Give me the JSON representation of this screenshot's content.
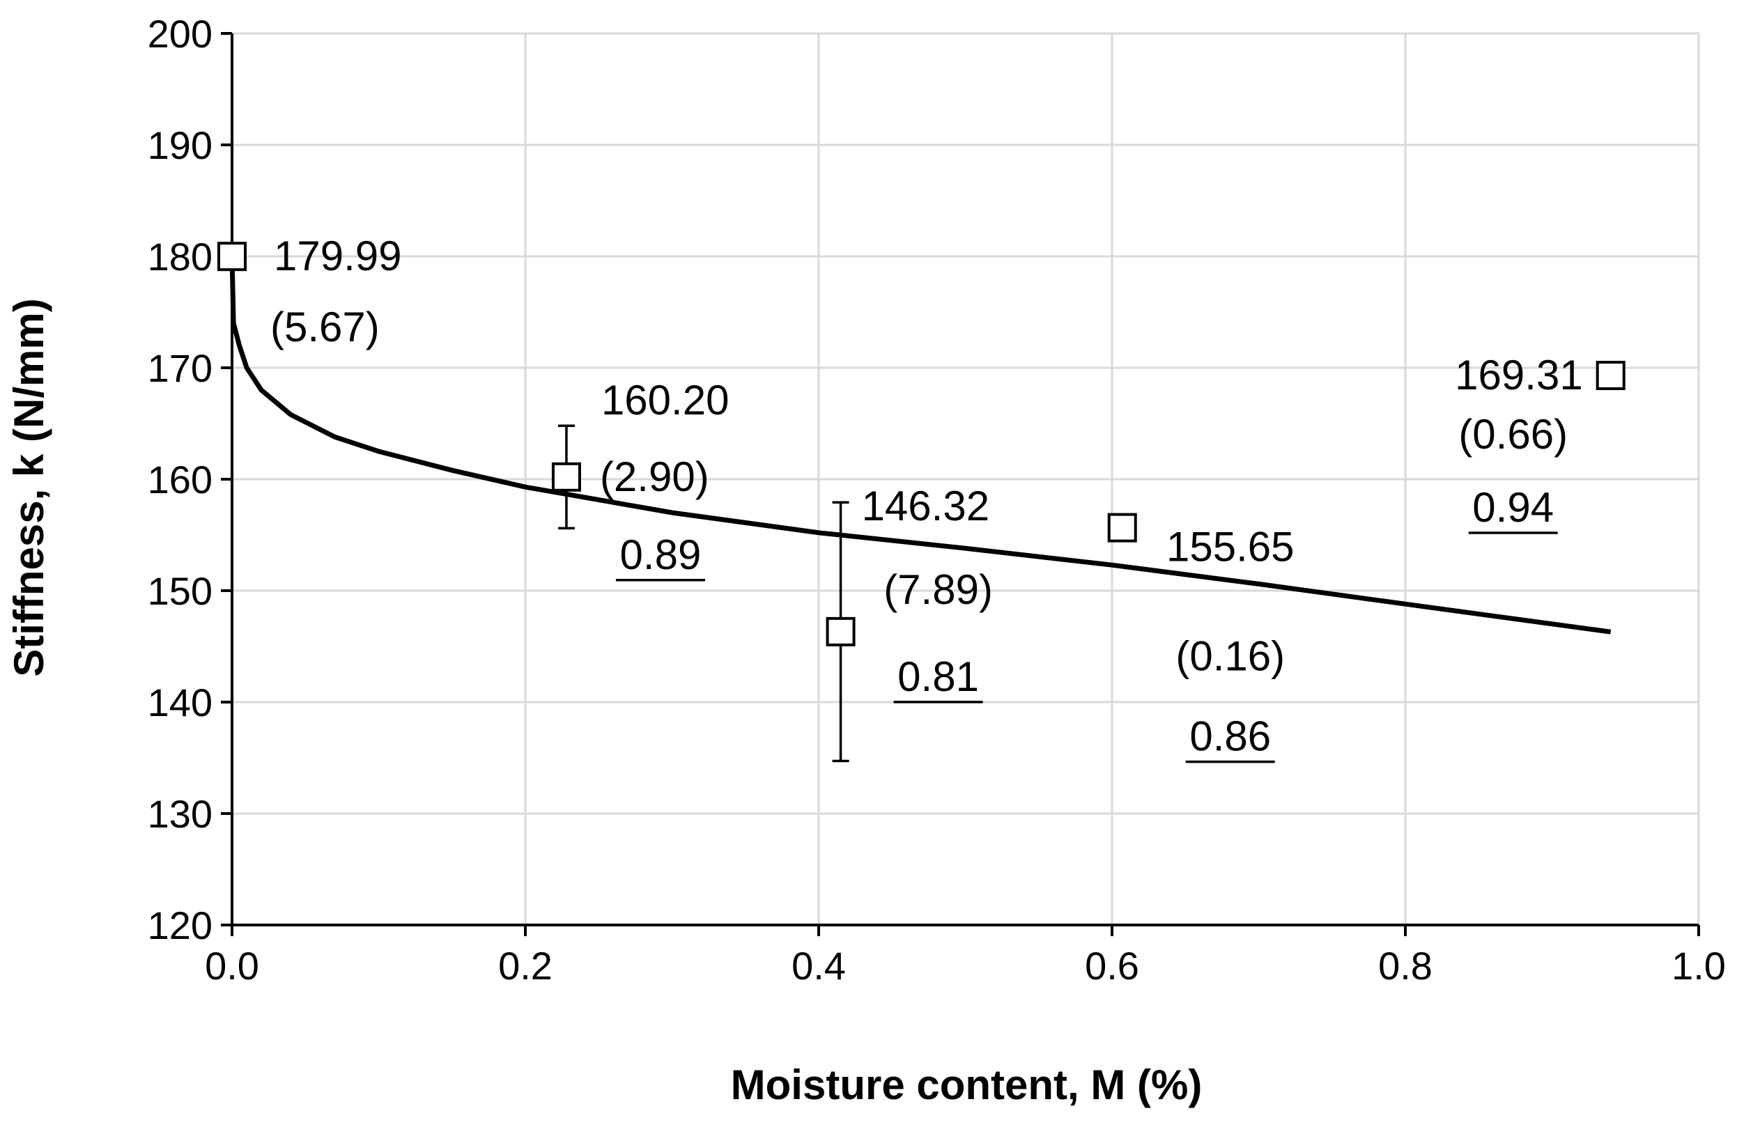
{
  "chart_data": {
    "type": "scatter",
    "xlabel": "Moisture content, M (%)",
    "ylabel": "Stiffness, k (N/mm)",
    "xlim": [
      0.0,
      1.0
    ],
    "ylim": [
      120,
      200
    ],
    "x_ticks": [
      "0.0",
      "0.2",
      "0.4",
      "0.6",
      "0.8",
      "1.0"
    ],
    "y_ticks": [
      "120",
      "130",
      "140",
      "150",
      "160",
      "170",
      "180",
      "190",
      "200"
    ],
    "grid": true,
    "points": [
      {
        "x": 0.0,
        "y": 179.99,
        "error": 0,
        "value_label": "179.99",
        "sd_label": "(5.67)",
        "extra_label": ""
      },
      {
        "x": 0.228,
        "y": 160.2,
        "error": 4.6,
        "value_label": "160.20",
        "sd_label": "(2.90)",
        "extra_label": "0.89"
      },
      {
        "x": 0.415,
        "y": 146.32,
        "error": 11.6,
        "value_label": "146.32",
        "sd_label": "(7.89)",
        "extra_label": "0.81"
      },
      {
        "x": 0.607,
        "y": 155.65,
        "error": 0,
        "value_label": "155.65",
        "sd_label": "(0.16)",
        "extra_label": "0.86"
      },
      {
        "x": 0.94,
        "y": 169.31,
        "error": 0,
        "value_label": "169.31",
        "sd_label": "(0.66)",
        "extra_label": "0.94"
      }
    ],
    "fit_curve": {
      "x": [
        0.0,
        0.001,
        0.005,
        0.01,
        0.02,
        0.04,
        0.07,
        0.1,
        0.15,
        0.2,
        0.3,
        0.4,
        0.5,
        0.6,
        0.7,
        0.8,
        0.94
      ],
      "y": [
        180.0,
        174.0,
        172.0,
        170.0,
        168.0,
        165.8,
        163.8,
        162.5,
        160.8,
        159.3,
        157.0,
        155.2,
        153.8,
        152.3,
        150.6,
        148.8,
        146.3
      ]
    }
  }
}
